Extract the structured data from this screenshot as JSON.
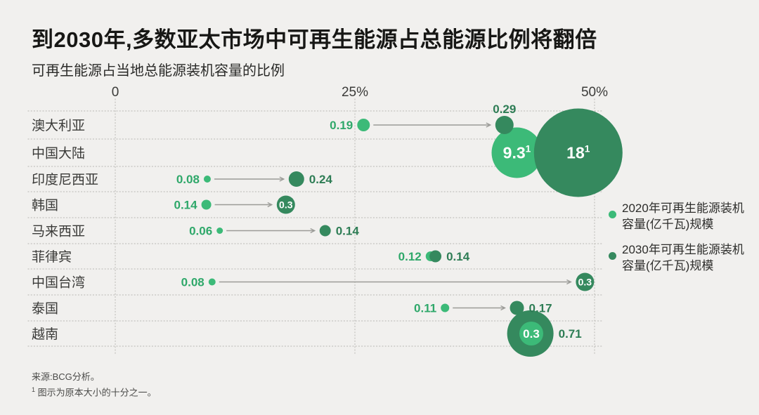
{
  "title": "到2030年,多数亚太市场中可再生能源占总能源比例将翻倍",
  "subtitle": "可再生能源占当地总能源装机容量的比例",
  "source_note": "来源:BCG分析。",
  "footnote_marker": "1",
  "footnote_text": "图示为原本大小的十分之一。",
  "colors": {
    "bg": "#f1f0ee",
    "light_green": "#3cba78",
    "dark_green": "#35895e",
    "light_label": "#2fa86a",
    "dark_label": "#2e7d55",
    "inside_label": "#ffffff",
    "arrow": "#9b9b97",
    "grid": "#c2c1bd",
    "axis_text": "#3b3b39",
    "row_label": "#3b3b39"
  },
  "chart_data": {
    "type": "scatter",
    "variant": "bubble-dot-plot",
    "title": "到2030年,多数亚太市场中可再生能源占总能源比例将翻倍",
    "subtitle": "可再生能源占当地总能源装机容量的比例",
    "xlabel": "可再生能源占当地总能源装机容量的比例 (%)",
    "xlim": [
      0,
      55
    ],
    "x_unit": "%",
    "bubble_unit": "亿千瓦",
    "grid": "dotted",
    "legend_position": "right",
    "x_axis": {
      "ticks": [
        "0",
        "25%",
        "50%"
      ],
      "tick_values": [
        0,
        25,
        50
      ]
    },
    "legend": [
      {
        "year": "2020",
        "color_key": "light_green",
        "lines": [
          "2020年可再生能源装机",
          "容量(亿千瓦)规模"
        ]
      },
      {
        "year": "2030",
        "color_key": "dark_green",
        "lines": [
          "2030年可再生能源装机",
          "容量(亿千瓦)规模"
        ]
      }
    ],
    "rows": [
      {
        "market": "澳大利亚",
        "arrow": true,
        "points": [
          {
            "year": "2020",
            "share_pct": 25.9,
            "capacity": 0.19,
            "label": "0.19",
            "r": 9,
            "label_pos": "left"
          },
          {
            "year": "2030",
            "share_pct": 40.6,
            "capacity": 0.29,
            "label": "0.29",
            "r": 13,
            "label_pos": "above"
          }
        ]
      },
      {
        "market": "中国大陆",
        "arrow": false,
        "points": [
          {
            "year": "2020",
            "share_pct": 41.9,
            "capacity": 9.3,
            "label": "9.3",
            "sup": "1",
            "r": 36,
            "label_pos": "inside",
            "label_size": 23
          },
          {
            "year": "2030",
            "share_pct": 48.3,
            "capacity": 18,
            "label": "18",
            "sup": "1",
            "r": 63,
            "label_pos": "inside",
            "label_size": 23
          }
        ]
      },
      {
        "market": "印度尼西亚",
        "arrow": true,
        "points": [
          {
            "year": "2020",
            "share_pct": 9.6,
            "capacity": 0.08,
            "label": "0.08",
            "r": 5,
            "label_pos": "left"
          },
          {
            "year": "2030",
            "share_pct": 18.9,
            "capacity": 0.24,
            "label": "0.24",
            "r": 11,
            "label_pos": "right"
          }
        ]
      },
      {
        "market": "韩国",
        "arrow": true,
        "points": [
          {
            "year": "2020",
            "share_pct": 9.5,
            "capacity": 0.14,
            "label": "0.14",
            "r": 7,
            "label_pos": "left"
          },
          {
            "year": "2030",
            "share_pct": 17.8,
            "capacity": 0.3,
            "label": "0.3",
            "r": 13,
            "label_pos": "inside",
            "label_size": 14
          }
        ]
      },
      {
        "market": "马来西亚",
        "arrow": true,
        "points": [
          {
            "year": "2020",
            "share_pct": 10.9,
            "capacity": 0.06,
            "label": "0.06",
            "r": 4.5,
            "label_pos": "left"
          },
          {
            "year": "2030",
            "share_pct": 21.9,
            "capacity": 0.14,
            "label": "0.14",
            "r": 8,
            "label_pos": "right"
          }
        ]
      },
      {
        "market": "菲律宾",
        "arrow": false,
        "points": [
          {
            "year": "2020",
            "share_pct": 32.9,
            "capacity": 0.12,
            "label": "0.12",
            "r": 7,
            "label_pos": "left"
          },
          {
            "year": "2030",
            "share_pct": 33.4,
            "capacity": 0.14,
            "label": "0.14",
            "r": 8.5,
            "label_pos": "right"
          }
        ]
      },
      {
        "market": "中国台湾",
        "arrow": true,
        "points": [
          {
            "year": "2020",
            "share_pct": 10.1,
            "capacity": 0.08,
            "label": "0.08",
            "r": 5,
            "label_pos": "left"
          },
          {
            "year": "2030",
            "share_pct": 49.0,
            "capacity": 0.3,
            "label": "0.3",
            "r": 13,
            "label_pos": "inside",
            "label_size": 14
          }
        ]
      },
      {
        "market": "泰国",
        "arrow": true,
        "points": [
          {
            "year": "2020",
            "share_pct": 34.4,
            "capacity": 0.11,
            "label": "0.11",
            "r": 6,
            "label_pos": "left"
          },
          {
            "year": "2030",
            "share_pct": 41.9,
            "capacity": 0.17,
            "label": "0.17",
            "r": 10,
            "label_pos": "right"
          }
        ]
      },
      {
        "market": "越南",
        "arrow": false,
        "points": [
          {
            "year": "2020",
            "share_pct": 43.4,
            "capacity": 0.3,
            "label": "0.3",
            "r": 17,
            "label_pos": "inside",
            "label_size": 17,
            "layer": 3
          },
          {
            "year": "2030",
            "share_pct": 43.3,
            "capacity": 0.71,
            "label": "0.71",
            "r": 33,
            "label_pos": "right"
          }
        ]
      }
    ]
  }
}
